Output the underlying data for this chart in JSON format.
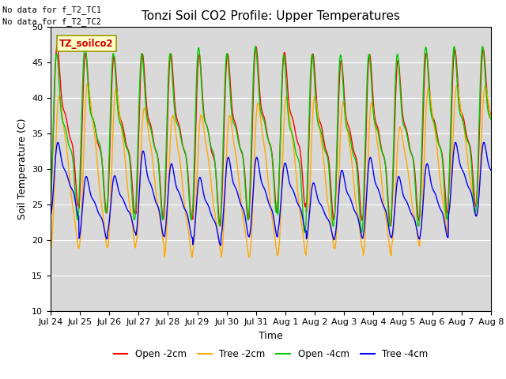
{
  "title": "Tonzi Soil CO2 Profile: Upper Temperatures",
  "ylabel": "Soil Temperature (C)",
  "xlabel": "Time",
  "ylim": [
    10,
    50
  ],
  "xtick_labels": [
    "Jul 24",
    "Jul 25",
    "Jul 26",
    "Jul 27",
    "Jul 28",
    "Jul 29",
    "Jul 30",
    "Jul 31",
    "Aug 1",
    "Aug 2",
    "Aug 3",
    "Aug 4",
    "Aug 5",
    "Aug 6",
    "Aug 7",
    "Aug 8"
  ],
  "nodata_text1": "No data for f_T2_TC1",
  "nodata_text2": "No data for f_T2_TC2",
  "label_box_text": "TZ_soilco2",
  "series_labels": [
    "Open -2cm",
    "Tree -2cm",
    "Open -4cm",
    "Tree -4cm"
  ],
  "series_colors": [
    "#ff0000",
    "#ffaa00",
    "#00cc00",
    "#0000ff"
  ],
  "background_color": "#d9d9d9",
  "title_fontsize": 11,
  "axis_fontsize": 9,
  "tick_fontsize": 8,
  "n_days": 15.5,
  "pts_per_day": 96
}
